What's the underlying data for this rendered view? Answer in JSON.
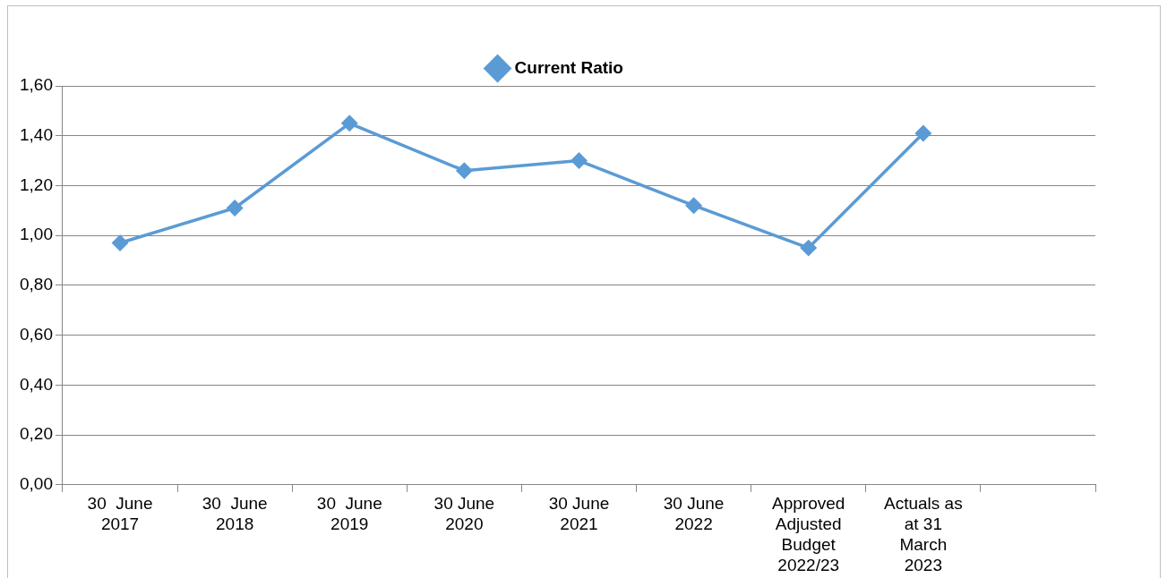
{
  "chart_data": {
    "type": "line",
    "categories": [
      "30  June 2017",
      "30  June 2018",
      "30  June 2019",
      "30 June 2020",
      "30 June 2021",
      "30 June 2022",
      "Approved Adjusted Budget 2022/23",
      "Actuals as at 31 March 2023",
      null
    ],
    "series": [
      {
        "name": "Current Ratio",
        "color": "#5b9bd5",
        "values": [
          0.97,
          1.11,
          1.45,
          1.26,
          1.3,
          1.12,
          0.95,
          1.41,
          null
        ]
      }
    ],
    "ylim": [
      0,
      1.6
    ],
    "yticks": [
      {
        "value": 0,
        "label": "0,00"
      },
      {
        "value": 0.2,
        "label": "0,20"
      },
      {
        "value": 0.4,
        "label": "0,40"
      },
      {
        "value": 0.6,
        "label": "0,60"
      },
      {
        "value": 0.8,
        "label": "0,80"
      },
      {
        "value": 1,
        "label": "1,00"
      },
      {
        "value": 1.2,
        "label": "1,20"
      },
      {
        "value": 1.4,
        "label": "1,40"
      },
      {
        "value": 1.6,
        "label": "1,60"
      }
    ],
    "grid": "y",
    "legend": "top",
    "marker": "diamond",
    "line_style": "solid"
  }
}
